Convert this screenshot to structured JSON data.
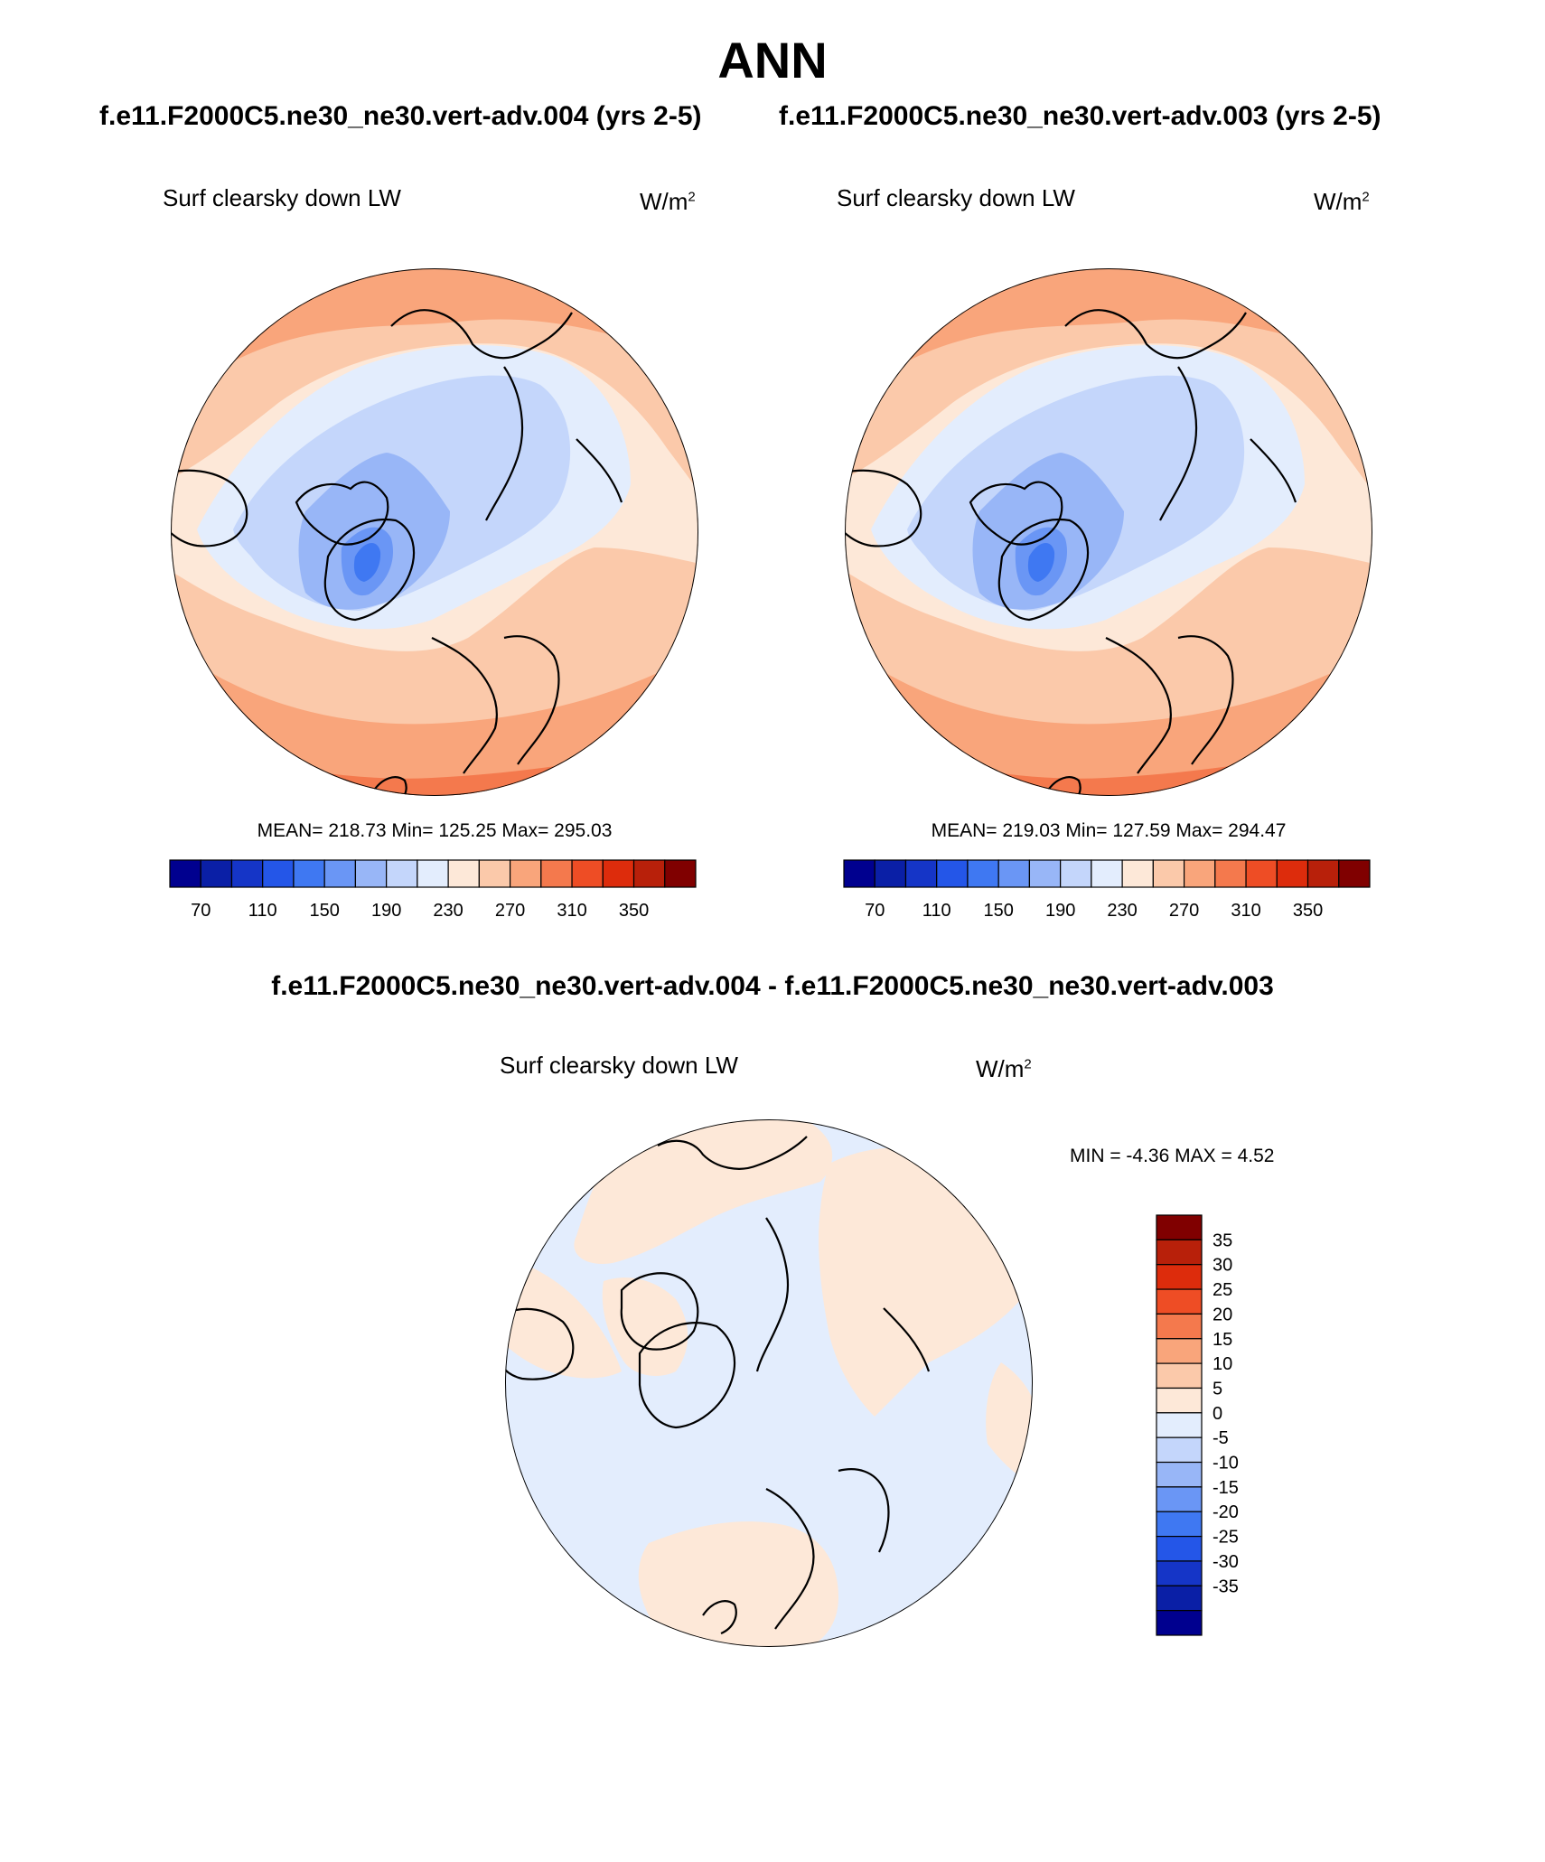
{
  "page": {
    "title": "ANN",
    "case_a_title": "f.e11.F2000C5.ne30_ne30.vert-adv.004 (yrs 2-5)",
    "case_b_title": "f.e11.F2000C5.ne30_ne30.vert-adv.003 (yrs 2-5)",
    "diff_title": "f.e11.F2000C5.ne30_ne30.vert-adv.004 - f.e11.F2000C5.ne30_ne30.vert-adv.003"
  },
  "panels": [
    {
      "variable": "Surf clearsky down LW",
      "units": "W/m",
      "units_sup": "2",
      "stats": "MEAN= 218.73  Min= 125.25  Max= 295.03"
    },
    {
      "variable": "Surf clearsky down LW",
      "units": "W/m",
      "units_sup": "2",
      "stats": "MEAN= 219.03  Min= 127.59  Max= 294.47"
    }
  ],
  "diff_panel": {
    "variable": "Surf clearsky down LW",
    "units": "W/m",
    "units_sup": "2",
    "stats": "MIN =  -4.36 MAX =   4.52"
  },
  "colorbar_top": {
    "colors": [
      "#00008f",
      "#0a1fa6",
      "#1535c7",
      "#2456e8",
      "#3f78f2",
      "#6a96f5",
      "#98b6f7",
      "#c4d6fb",
      "#e3edfd",
      "#fde8d8",
      "#fbc9aa",
      "#f9a57b",
      "#f4794d",
      "#ee4d25",
      "#dd2c0c",
      "#b8200a",
      "#800000"
    ],
    "labels": [
      "70",
      "110",
      "150",
      "190",
      "230",
      "270",
      "310",
      "350"
    ],
    "label_positions": [
      1,
      3,
      5,
      7,
      9,
      11,
      13,
      15
    ]
  },
  "colorbar_diff": {
    "colors_top_to_bottom": [
      "#800000",
      "#b8200a",
      "#dd2c0c",
      "#ee4d25",
      "#f4794d",
      "#f9a57b",
      "#fbc9aa",
      "#fde8d8",
      "#e3edfd",
      "#c4d6fb",
      "#98b6f7",
      "#6a96f5",
      "#3f78f2",
      "#2456e8",
      "#1535c7",
      "#0a1fa6",
      "#00008f"
    ],
    "labels_top_to_bottom": [
      "35",
      "30",
      "25",
      "20",
      "15",
      "10",
      "5",
      "0",
      "-5",
      "-10",
      "-15",
      "-20",
      "-25",
      "-30",
      "-35"
    ]
  },
  "legend_colors": {
    "land_outline": "#000000"
  }
}
